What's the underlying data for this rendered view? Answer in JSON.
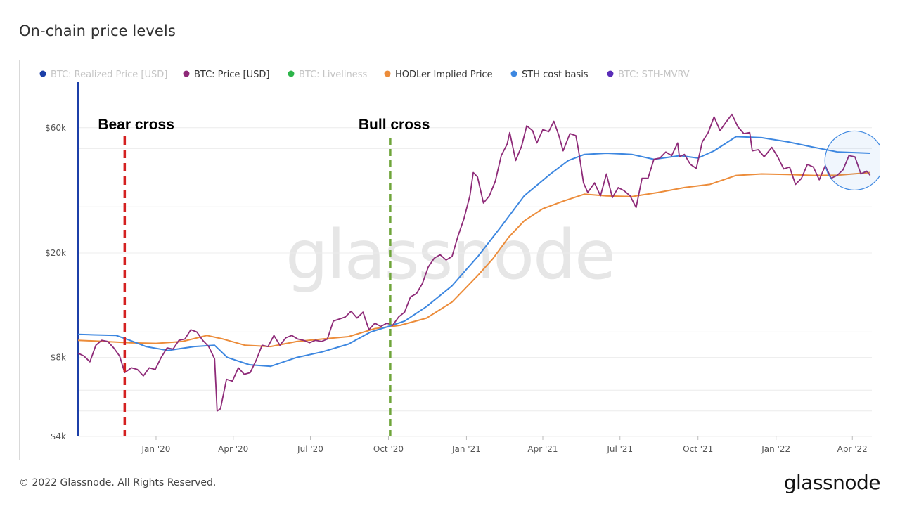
{
  "page": {
    "title": "On-chain price levels",
    "footer": "© 2022 Glassnode. All Rights Reserved.",
    "brand": "glassnode",
    "watermark": "glassnode"
  },
  "legend": [
    {
      "label": "BTC: Realized Price [USD]",
      "color": "#1c3fa8",
      "enabled": false
    },
    {
      "label": "BTC: Price [USD]",
      "color": "#8e2a78",
      "enabled": true
    },
    {
      "label": "BTC: Liveliness",
      "color": "#2db54a",
      "enabled": false
    },
    {
      "label": "HODLer Implied Price",
      "color": "#ec8c3a",
      "enabled": true
    },
    {
      "label": "STH cost basis",
      "color": "#3d87e0",
      "enabled": true
    },
    {
      "label": "BTC: STH-MVRV",
      "color": "#5a2db8",
      "enabled": false
    }
  ],
  "annotations": {
    "bear_label": "Bear cross",
    "bull_label": "Bull cross",
    "bear_date": "2019-11-25",
    "bull_date": "2020-10-03",
    "bear_color": "#d42020",
    "bull_color": "#6fa53a",
    "highlight_date": "2022-04-01",
    "highlight_color": "#3d87e0"
  },
  "chart_data": {
    "type": "line",
    "title": "On-chain price levels",
    "xlabel": "",
    "ylabel": "",
    "y_scale": "log",
    "ylim": [
      4000,
      90000
    ],
    "xlim": [
      "2019-10-01",
      "2022-04-24"
    ],
    "x_ticks": [
      {
        "date": "2020-01-01",
        "label": "Jan '20"
      },
      {
        "date": "2020-04-01",
        "label": "Apr '20"
      },
      {
        "date": "2020-07-01",
        "label": "Jul '20"
      },
      {
        "date": "2020-10-01",
        "label": "Oct '20"
      },
      {
        "date": "2021-01-01",
        "label": "Jan '21"
      },
      {
        "date": "2021-04-01",
        "label": "Apr '21"
      },
      {
        "date": "2021-07-01",
        "label": "Jul '21"
      },
      {
        "date": "2021-10-01",
        "label": "Oct '21"
      },
      {
        "date": "2022-01-01",
        "label": "Jan '22"
      },
      {
        "date": "2022-04-01",
        "label": "Apr '22"
      }
    ],
    "y_ticks": [
      {
        "value": 4000,
        "label": "$4k"
      },
      {
        "value": 8000,
        "label": "$8k"
      },
      {
        "value": 20000,
        "label": "$20k"
      },
      {
        "value": 60000,
        "label": "$60k"
      }
    ],
    "y_grid": [
      4000,
      5000,
      6000,
      8000,
      10000,
      20000,
      30000,
      40000,
      50000,
      60000
    ],
    "series": [
      {
        "name": "BTC: Price [USD]",
        "color": "#8e2a78",
        "points": [
          [
            "2019-10-01",
            8300
          ],
          [
            "2019-10-08",
            8100
          ],
          [
            "2019-10-15",
            7700
          ],
          [
            "2019-10-22",
            8900
          ],
          [
            "2019-10-29",
            9300
          ],
          [
            "2019-11-05",
            9200
          ],
          [
            "2019-11-12",
            8700
          ],
          [
            "2019-11-19",
            8100
          ],
          [
            "2019-11-25",
            7000
          ],
          [
            "2019-12-03",
            7300
          ],
          [
            "2019-12-10",
            7200
          ],
          [
            "2019-12-17",
            6800
          ],
          [
            "2019-12-24",
            7300
          ],
          [
            "2019-12-31",
            7200
          ],
          [
            "2020-01-07",
            8000
          ],
          [
            "2020-01-14",
            8700
          ],
          [
            "2020-01-21",
            8600
          ],
          [
            "2020-01-28",
            9300
          ],
          [
            "2020-02-04",
            9400
          ],
          [
            "2020-02-11",
            10200
          ],
          [
            "2020-02-18",
            10000
          ],
          [
            "2020-02-25",
            9300
          ],
          [
            "2020-03-03",
            8800
          ],
          [
            "2020-03-10",
            7900
          ],
          [
            "2020-03-13",
            5000
          ],
          [
            "2020-03-17",
            5100
          ],
          [
            "2020-03-24",
            6600
          ],
          [
            "2020-03-31",
            6500
          ],
          [
            "2020-04-07",
            7300
          ],
          [
            "2020-04-14",
            6900
          ],
          [
            "2020-04-21",
            7000
          ],
          [
            "2020-04-28",
            7800
          ],
          [
            "2020-05-05",
            8900
          ],
          [
            "2020-05-12",
            8800
          ],
          [
            "2020-05-19",
            9700
          ],
          [
            "2020-05-26",
            8900
          ],
          [
            "2020-06-02",
            9500
          ],
          [
            "2020-06-09",
            9700
          ],
          [
            "2020-06-16",
            9400
          ],
          [
            "2020-06-23",
            9300
          ],
          [
            "2020-06-30",
            9100
          ],
          [
            "2020-07-07",
            9300
          ],
          [
            "2020-07-14",
            9200
          ],
          [
            "2020-07-21",
            9400
          ],
          [
            "2020-07-28",
            11000
          ],
          [
            "2020-08-04",
            11200
          ],
          [
            "2020-08-11",
            11400
          ],
          [
            "2020-08-18",
            12000
          ],
          [
            "2020-08-25",
            11300
          ],
          [
            "2020-09-01",
            11900
          ],
          [
            "2020-09-08",
            10200
          ],
          [
            "2020-09-15",
            10800
          ],
          [
            "2020-09-22",
            10500
          ],
          [
            "2020-09-29",
            10800
          ],
          [
            "2020-10-06",
            10600
          ],
          [
            "2020-10-13",
            11400
          ],
          [
            "2020-10-20",
            11900
          ],
          [
            "2020-10-27",
            13600
          ],
          [
            "2020-11-03",
            14000
          ],
          [
            "2020-11-10",
            15300
          ],
          [
            "2020-11-17",
            17700
          ],
          [
            "2020-11-24",
            19100
          ],
          [
            "2020-12-01",
            19700
          ],
          [
            "2020-12-08",
            18800
          ],
          [
            "2020-12-15",
            19400
          ],
          [
            "2020-12-22",
            23200
          ],
          [
            "2020-12-29",
            27000
          ],
          [
            "2021-01-05",
            33000
          ],
          [
            "2021-01-09",
            40500
          ],
          [
            "2021-01-14",
            39000
          ],
          [
            "2021-01-21",
            31000
          ],
          [
            "2021-01-28",
            33000
          ],
          [
            "2021-02-04",
            37500
          ],
          [
            "2021-02-11",
            47000
          ],
          [
            "2021-02-18",
            52000
          ],
          [
            "2021-02-21",
            57500
          ],
          [
            "2021-02-28",
            45000
          ],
          [
            "2021-03-07",
            51000
          ],
          [
            "2021-03-13",
            61000
          ],
          [
            "2021-03-20",
            58500
          ],
          [
            "2021-03-25",
            52500
          ],
          [
            "2021-04-01",
            59000
          ],
          [
            "2021-04-08",
            58000
          ],
          [
            "2021-04-14",
            63500
          ],
          [
            "2021-04-20",
            56000
          ],
          [
            "2021-04-25",
            49000
          ],
          [
            "2021-05-03",
            57000
          ],
          [
            "2021-05-10",
            56000
          ],
          [
            "2021-05-13",
            49500
          ],
          [
            "2021-05-19",
            37000
          ],
          [
            "2021-05-24",
            34000
          ],
          [
            "2021-06-01",
            37000
          ],
          [
            "2021-06-08",
            33000
          ],
          [
            "2021-06-15",
            40000
          ],
          [
            "2021-06-22",
            32500
          ],
          [
            "2021-06-29",
            35500
          ],
          [
            "2021-07-06",
            34500
          ],
          [
            "2021-07-13",
            33000
          ],
          [
            "2021-07-20",
            29800
          ],
          [
            "2021-07-27",
            38500
          ],
          [
            "2021-08-03",
            38500
          ],
          [
            "2021-08-10",
            45500
          ],
          [
            "2021-08-17",
            46000
          ],
          [
            "2021-08-24",
            48500
          ],
          [
            "2021-08-31",
            47000
          ],
          [
            "2021-09-07",
            52500
          ],
          [
            "2021-09-09",
            46500
          ],
          [
            "2021-09-15",
            47500
          ],
          [
            "2021-09-22",
            43500
          ],
          [
            "2021-09-29",
            42000
          ],
          [
            "2021-10-06",
            53000
          ],
          [
            "2021-10-13",
            57500
          ],
          [
            "2021-10-20",
            66000
          ],
          [
            "2021-10-27",
            58500
          ],
          [
            "2021-11-03",
            63000
          ],
          [
            "2021-11-10",
            67500
          ],
          [
            "2021-11-17",
            60500
          ],
          [
            "2021-11-24",
            57000
          ],
          [
            "2021-12-01",
            57500
          ],
          [
            "2021-12-04",
            49000
          ],
          [
            "2021-12-11",
            49500
          ],
          [
            "2021-12-18",
            46500
          ],
          [
            "2021-12-27",
            50500
          ],
          [
            "2022-01-03",
            46500
          ],
          [
            "2022-01-10",
            41800
          ],
          [
            "2022-01-17",
            42500
          ],
          [
            "2022-01-24",
            36500
          ],
          [
            "2022-01-31",
            38500
          ],
          [
            "2022-02-07",
            43500
          ],
          [
            "2022-02-14",
            42500
          ],
          [
            "2022-02-21",
            38000
          ],
          [
            "2022-02-28",
            43000
          ],
          [
            "2022-03-07",
            38500
          ],
          [
            "2022-03-14",
            39500
          ],
          [
            "2022-03-21",
            41500
          ],
          [
            "2022-03-28",
            47000
          ],
          [
            "2022-04-04",
            46500
          ],
          [
            "2022-04-11",
            40000
          ],
          [
            "2022-04-18",
            41000
          ],
          [
            "2022-04-22",
            39500
          ]
        ]
      },
      {
        "name": "HODLer Implied Price",
        "color": "#ec8c3a",
        "points": [
          [
            "2019-10-01",
            9300
          ],
          [
            "2019-11-01",
            9200
          ],
          [
            "2019-12-01",
            9100
          ],
          [
            "2020-01-01",
            9050
          ],
          [
            "2020-02-01",
            9200
          ],
          [
            "2020-03-01",
            9700
          ],
          [
            "2020-03-20",
            9400
          ],
          [
            "2020-04-15",
            8900
          ],
          [
            "2020-05-15",
            8800
          ],
          [
            "2020-06-15",
            9200
          ],
          [
            "2020-07-15",
            9400
          ],
          [
            "2020-08-15",
            9600
          ],
          [
            "2020-09-15",
            10300
          ],
          [
            "2020-10-15",
            10600
          ],
          [
            "2020-11-15",
            11300
          ],
          [
            "2020-12-15",
            13000
          ],
          [
            "2021-01-15",
            16500
          ],
          [
            "2021-02-01",
            19000
          ],
          [
            "2021-02-20",
            23000
          ],
          [
            "2021-03-10",
            26500
          ],
          [
            "2021-04-01",
            29500
          ],
          [
            "2021-04-25",
            31500
          ],
          [
            "2021-05-20",
            33500
          ],
          [
            "2021-06-15",
            33000
          ],
          [
            "2021-07-15",
            32800
          ],
          [
            "2021-08-15",
            34000
          ],
          [
            "2021-09-15",
            35500
          ],
          [
            "2021-10-15",
            36500
          ],
          [
            "2021-11-15",
            39500
          ],
          [
            "2021-12-15",
            40000
          ],
          [
            "2022-01-15",
            39800
          ],
          [
            "2022-02-15",
            39500
          ],
          [
            "2022-03-15",
            39600
          ],
          [
            "2022-04-22",
            40500
          ]
        ]
      },
      {
        "name": "STH cost basis",
        "color": "#3d87e0",
        "points": [
          [
            "2019-10-01",
            9800
          ],
          [
            "2019-10-20",
            9750
          ],
          [
            "2019-11-15",
            9700
          ],
          [
            "2019-12-01",
            9300
          ],
          [
            "2019-12-20",
            8800
          ],
          [
            "2020-01-15",
            8500
          ],
          [
            "2020-02-15",
            8800
          ],
          [
            "2020-03-10",
            8900
          ],
          [
            "2020-03-25",
            8000
          ],
          [
            "2020-04-20",
            7500
          ],
          [
            "2020-05-15",
            7400
          ],
          [
            "2020-06-15",
            8000
          ],
          [
            "2020-07-15",
            8400
          ],
          [
            "2020-08-15",
            9000
          ],
          [
            "2020-09-10",
            10000
          ],
          [
            "2020-10-01",
            10500
          ],
          [
            "2020-10-20",
            11000
          ],
          [
            "2020-11-15",
            12500
          ],
          [
            "2020-12-15",
            15000
          ],
          [
            "2021-01-15",
            19500
          ],
          [
            "2021-02-10",
            25000
          ],
          [
            "2021-03-10",
            33000
          ],
          [
            "2021-04-10",
            40000
          ],
          [
            "2021-05-01",
            45000
          ],
          [
            "2021-05-20",
            47500
          ],
          [
            "2021-06-15",
            48000
          ],
          [
            "2021-07-15",
            47500
          ],
          [
            "2021-08-10",
            45500
          ],
          [
            "2021-09-10",
            47000
          ],
          [
            "2021-10-01",
            46000
          ],
          [
            "2021-10-20",
            49000
          ],
          [
            "2021-11-15",
            55500
          ],
          [
            "2021-12-15",
            55000
          ],
          [
            "2022-01-15",
            53000
          ],
          [
            "2022-02-15",
            50500
          ],
          [
            "2022-03-15",
            48500
          ],
          [
            "2022-04-22",
            48000
          ]
        ]
      }
    ]
  }
}
